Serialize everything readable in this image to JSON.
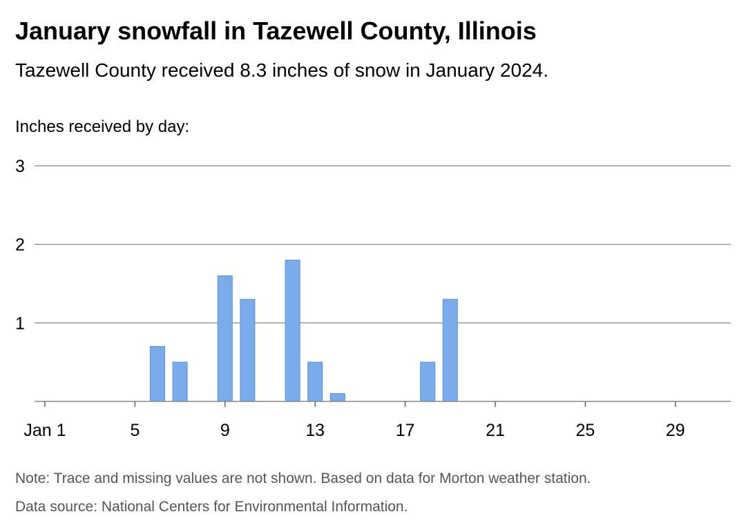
{
  "header": {
    "title": "January snowfall in Tazewell County, Illinois",
    "subtitle": "Tazewell County received 8.3 inches of snow in January 2024."
  },
  "footer": {
    "note": "Note: Trace and missing values are not shown. Based on data for Morton weather station.",
    "source": "Data source: National Centers for Environmental Information."
  },
  "chart_data": {
    "type": "bar",
    "title": "January snowfall in Tazewell County, Illinois",
    "subtitle": "Tazewell County received 8.3 inches of snow in January 2024.",
    "ylabel": "Inches received by day:",
    "xlabel": "",
    "x_range": [
      1,
      31
    ],
    "ylim": [
      0,
      3
    ],
    "y_ticks": [
      1,
      2,
      3
    ],
    "x_ticks": [
      {
        "day": 1,
        "label": "Jan 1"
      },
      {
        "day": 5,
        "label": "5"
      },
      {
        "day": 9,
        "label": "9"
      },
      {
        "day": 13,
        "label": "13"
      },
      {
        "day": 17,
        "label": "17"
      },
      {
        "day": 21,
        "label": "21"
      },
      {
        "day": 25,
        "label": "25"
      },
      {
        "day": 29,
        "label": "29"
      }
    ],
    "grid": "horizontal",
    "bar_color": "#7aaced",
    "bar_edge_color": "#5b8fd6",
    "grid_color": "#999999",
    "bars": [
      {
        "day": 6,
        "value": 0.7
      },
      {
        "day": 7,
        "value": 0.5
      },
      {
        "day": 9,
        "value": 1.6
      },
      {
        "day": 10,
        "value": 1.3
      },
      {
        "day": 12,
        "value": 1.8
      },
      {
        "day": 13,
        "value": 0.5
      },
      {
        "day": 14,
        "value": 0.1
      },
      {
        "day": 18,
        "value": 0.5
      },
      {
        "day": 19,
        "value": 1.3
      }
    ]
  }
}
